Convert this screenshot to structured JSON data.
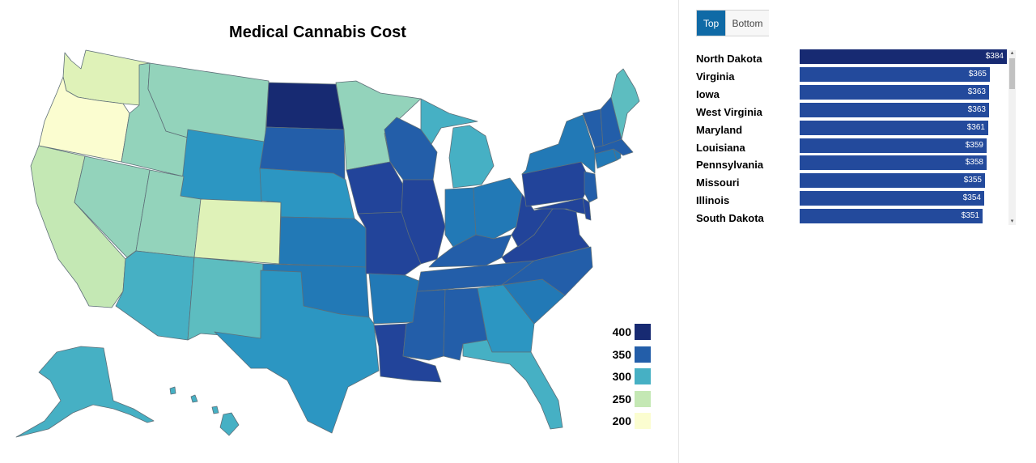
{
  "map": {
    "title": "Medical Cannabis Cost",
    "colors": {
      "c200": "#fbfdd0",
      "c235": "#dff2b8",
      "c250": "#c4e8b4",
      "c275": "#93d3bb",
      "c290": "#5dbdc0",
      "c300": "#46b0c4",
      "c315": "#2c96c2",
      "c330": "#2279b6",
      "c345": "#235ea9",
      "c360": "#22449a",
      "c384": "#172a72"
    },
    "legend": [
      {
        "label": "400",
        "color": "#172a72"
      },
      {
        "label": "350",
        "color": "#235ea9"
      },
      {
        "label": "300",
        "color": "#46b0c4"
      },
      {
        "label": "250",
        "color": "#c4e8b4"
      },
      {
        "label": "200",
        "color": "#fbfdd0"
      }
    ]
  },
  "panel": {
    "tabs": {
      "top": "Top",
      "bottom": "Bottom"
    },
    "active_tab": "Top",
    "max_value": 384,
    "bar_colors": {
      "first": "#172a72",
      "rest": "#234a9c"
    },
    "rows": [
      {
        "state": "North Dakota",
        "value": 384,
        "label": "$384"
      },
      {
        "state": "Virginia",
        "value": 365,
        "label": "$365"
      },
      {
        "state": "Iowa",
        "value": 363,
        "label": "$363"
      },
      {
        "state": "West Virginia",
        "value": 363,
        "label": "$363"
      },
      {
        "state": "Maryland",
        "value": 361,
        "label": "$361"
      },
      {
        "state": "Louisiana",
        "value": 359,
        "label": "$359"
      },
      {
        "state": "Pennsylvania",
        "value": 358,
        "label": "$358"
      },
      {
        "state": "Missouri",
        "value": 355,
        "label": "$355"
      },
      {
        "state": "Illinois",
        "value": 354,
        "label": "$354"
      },
      {
        "state": "South Dakota",
        "value": 351,
        "label": "$351"
      }
    ]
  }
}
